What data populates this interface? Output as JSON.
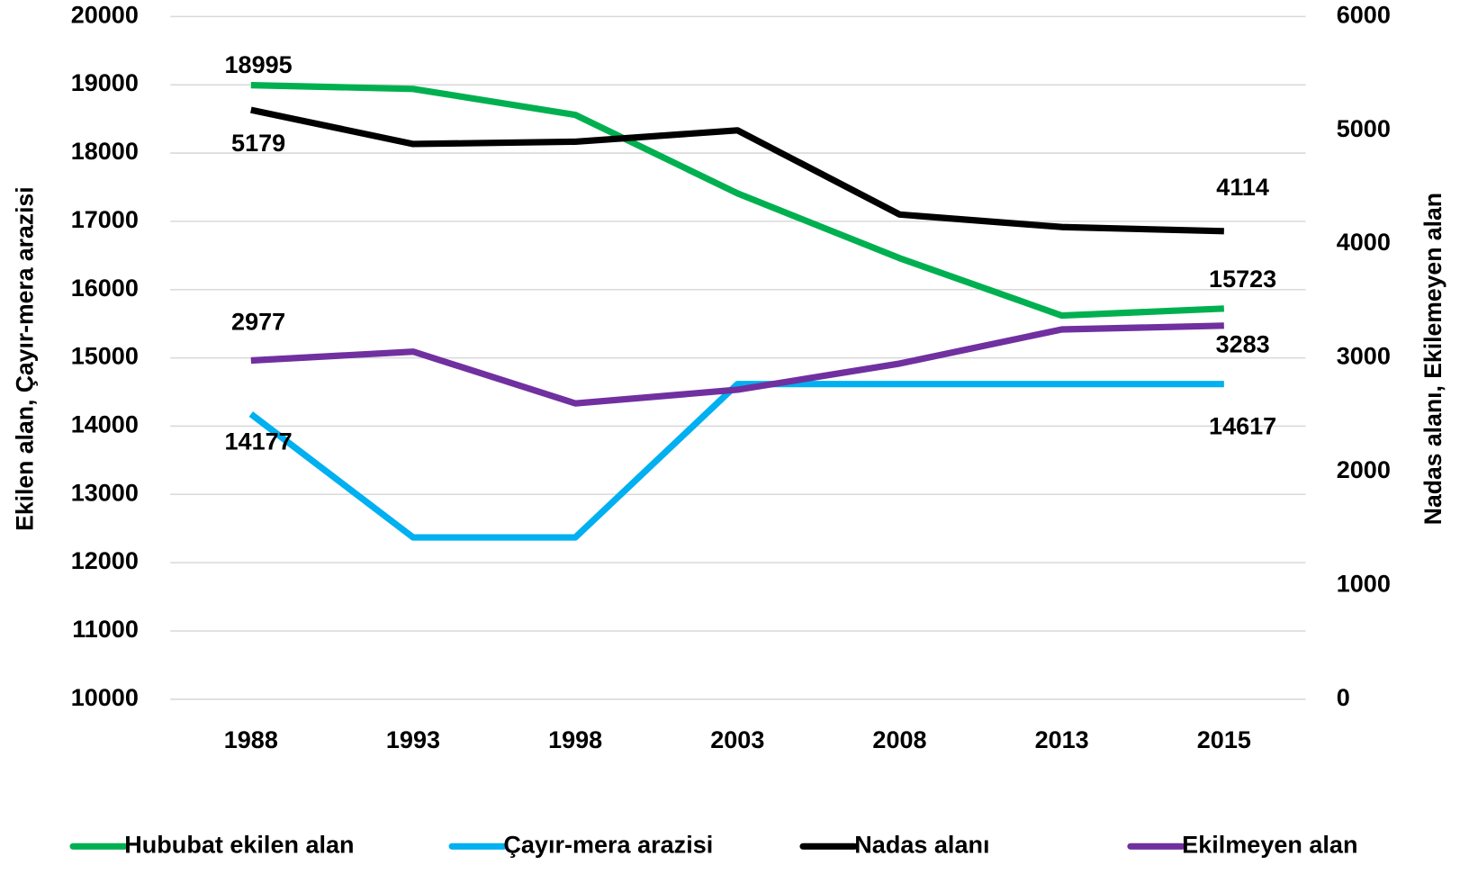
{
  "chart_data": {
    "type": "line",
    "categories": [
      "1988",
      "1993",
      "1998",
      "2003",
      "2008",
      "2013",
      "2015"
    ],
    "y_label": "Ekilen alan, Çayır-mera arazisi",
    "y2_label": "Nadas alanı, Ekilemeyen alan",
    "ylim": [
      10000,
      20000
    ],
    "yticks": [
      10000,
      11000,
      12000,
      13000,
      14000,
      15000,
      16000,
      17000,
      18000,
      19000,
      20000
    ],
    "y2lim": [
      0,
      6000
    ],
    "y2ticks": [
      0,
      1000,
      2000,
      3000,
      4000,
      5000,
      6000
    ],
    "grid": true,
    "legend": "bottom",
    "series": [
      {
        "name": "Hububat ekilen alan",
        "color": "#00b050",
        "values": [
          18995,
          18940,
          18560,
          17410,
          16460,
          15620,
          15723
        ],
        "value_labels": [
          "18995",
          null,
          null,
          null,
          null,
          null,
          "15723"
        ]
      },
      {
        "name": "Çayır-mera arazisi",
        "color": "#00b0f0",
        "values": [
          14177,
          12370,
          12370,
          14617,
          14617,
          14617,
          14617
        ],
        "value_labels": [
          "14177",
          null,
          null,
          null,
          null,
          null,
          "14617"
        ]
      },
      {
        "name": "Nadas alanı",
        "color": "#000000",
        "axis": "y2",
        "values": [
          5179,
          4880,
          4900,
          5000,
          4260,
          4150,
          4114
        ],
        "value_labels": [
          "5179",
          null,
          null,
          null,
          null,
          null,
          "4114"
        ]
      },
      {
        "name": "Ekilmeyen alan",
        "color": "#7030a0",
        "axis": "y2",
        "values": [
          2977,
          3055,
          2600,
          2720,
          2950,
          3250,
          3283
        ],
        "value_labels": [
          "2977",
          null,
          null,
          null,
          null,
          null,
          "3283"
        ]
      }
    ]
  }
}
